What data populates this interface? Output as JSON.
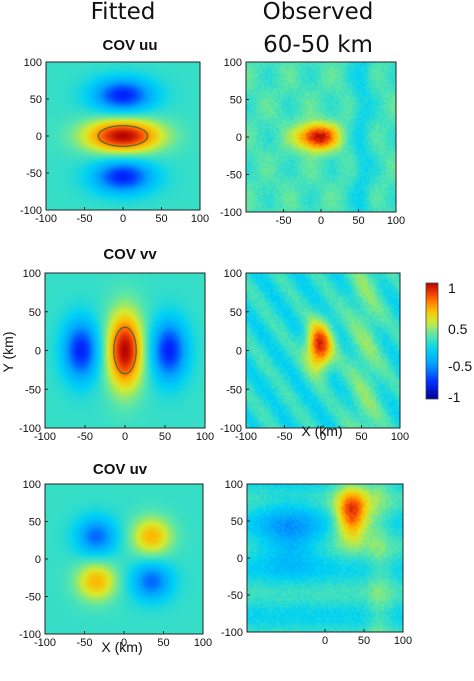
{
  "headers": {
    "left": "Fitted",
    "right_line1": "Observed",
    "right_line2": "60-50 km"
  },
  "panel_titles": [
    "COV uu",
    "COV vv",
    "COV uv"
  ],
  "axis_labels": {
    "x": "X (km)",
    "y": "Y (km)"
  },
  "colors": {
    "low": "#00008f",
    "mid": "#00c8ff",
    "high": "#ff8a00",
    "peak": "#b80000",
    "contour": "#556b2f"
  },
  "chart_data": [
    {
      "type": "heatmap",
      "title": "COV uu",
      "column": "Fitted",
      "xlim": [
        -100,
        100
      ],
      "ylim": [
        -100,
        100
      ],
      "xticks": [
        -100,
        -50,
        0,
        50,
        100
      ],
      "yticks": [
        -100,
        -50,
        0,
        50,
        100
      ],
      "xlabel": "",
      "ylabel": "",
      "pattern": "uu",
      "contour_level": 0.5
    },
    {
      "type": "heatmap",
      "title": "",
      "column": "Observed",
      "xlim": [
        -100,
        100
      ],
      "ylim": [
        -100,
        100
      ],
      "xticks": [
        -50,
        0,
        50,
        100
      ],
      "yticks": [
        -100,
        -50,
        0,
        50,
        100
      ],
      "xlabel": "",
      "ylabel": "",
      "pattern": "obs_uu"
    },
    {
      "type": "heatmap",
      "title": "COV vv",
      "column": "Fitted",
      "xlim": [
        -100,
        100
      ],
      "ylim": [
        -100,
        100
      ],
      "xticks": [
        -100,
        -50,
        0,
        50,
        100
      ],
      "yticks": [
        -100,
        -50,
        0,
        50,
        100
      ],
      "xlabel": "",
      "ylabel": "Y (km)",
      "pattern": "vv",
      "contour_level": 0.5
    },
    {
      "type": "heatmap",
      "title": "",
      "column": "Observed",
      "xlim": [
        -100,
        100
      ],
      "ylim": [
        -100,
        100
      ],
      "xticks": [
        -100,
        -50,
        0,
        50,
        100
      ],
      "yticks": [
        -100,
        -50,
        0,
        50,
        100
      ],
      "xlabel": "X (km)",
      "ylabel": "",
      "pattern": "obs_vv"
    },
    {
      "type": "heatmap",
      "title": "COV uv",
      "column": "Fitted",
      "xlim": [
        -100,
        100
      ],
      "ylim": [
        -100,
        100
      ],
      "xticks": [
        -100,
        -50,
        0,
        50,
        100
      ],
      "yticks": [
        -100,
        -50,
        0,
        50,
        100
      ],
      "xlabel": "X (km)",
      "ylabel": "",
      "pattern": "uv"
    },
    {
      "type": "heatmap",
      "title": "",
      "column": "Observed",
      "xlim": [
        -100,
        100
      ],
      "ylim": [
        -100,
        100
      ],
      "xticks": [
        0,
        50,
        100
      ],
      "yticks": [
        -100,
        -50,
        0,
        50,
        100
      ],
      "xlabel": "",
      "ylabel": "",
      "pattern": "obs_uv"
    }
  ],
  "colorbar": {
    "ticks": [
      {
        "label": "1",
        "value": 1.0
      },
      {
        "label": "0.5",
        "value": 0.5
      },
      {
        "label": "-0.5",
        "value": -0.5
      },
      {
        "label": "-1",
        "value": -1.0
      }
    ]
  }
}
